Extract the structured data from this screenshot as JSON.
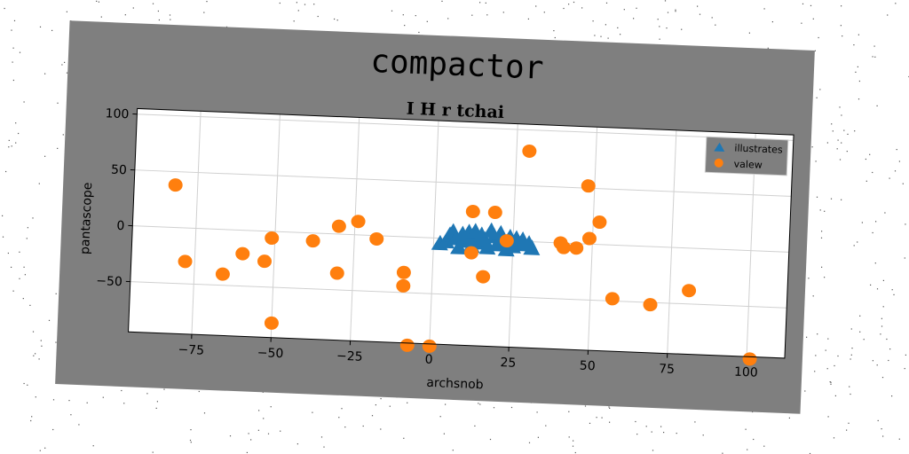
{
  "chart_data": {
    "type": "scatter",
    "title": "compactor",
    "subtitle": "I H r tchai",
    "xlabel": "archsnob",
    "ylabel": "pantascope",
    "xlim": [
      -95,
      112
    ],
    "ylim": [
      -95,
      105
    ],
    "xticks": [
      -75,
      -50,
      -25,
      0,
      25,
      50,
      75,
      100
    ],
    "yticks": [
      -50,
      0,
      50,
      100
    ],
    "xtick_labels": [
      "−75",
      "−50",
      "−25",
      "0",
      "25",
      "50",
      "75",
      "100"
    ],
    "ytick_labels": [
      "−50",
      "0",
      "50",
      "100"
    ],
    "grid": true,
    "legend_position": "top-right",
    "series": [
      {
        "name": "illustrates",
        "marker": "triangle",
        "color": "#1f77b4",
        "points": [
          [
            2,
            -5
          ],
          [
            4,
            -3
          ],
          [
            5,
            3
          ],
          [
            6,
            6
          ],
          [
            7,
            0
          ],
          [
            8,
            -8
          ],
          [
            9,
            4
          ],
          [
            10,
            -2
          ],
          [
            11,
            6
          ],
          [
            12,
            2
          ],
          [
            12,
            -6
          ],
          [
            13,
            7
          ],
          [
            14,
            -3
          ],
          [
            15,
            4
          ],
          [
            16,
            0
          ],
          [
            17,
            -7
          ],
          [
            18,
            8
          ],
          [
            19,
            3
          ],
          [
            20,
            -4
          ],
          [
            21,
            6
          ],
          [
            22,
            0
          ],
          [
            23,
            -8
          ],
          [
            24,
            3
          ],
          [
            25,
            -5
          ],
          [
            26,
            2
          ],
          [
            27,
            -3
          ],
          [
            28,
            1
          ],
          [
            30,
            -2
          ],
          [
            31,
            -6
          ]
        ]
      },
      {
        "name": "valew",
        "marker": "circle",
        "color": "#ff7f0e",
        "points": [
          [
            -82,
            38
          ],
          [
            -78,
            -30
          ],
          [
            -66,
            -40
          ],
          [
            -60,
            -21
          ],
          [
            -53,
            -27
          ],
          [
            -51,
            -6
          ],
          [
            -50,
            -82
          ],
          [
            -38,
            -7
          ],
          [
            -30,
            7
          ],
          [
            -30,
            -35
          ],
          [
            -24,
            12
          ],
          [
            -18,
            -3
          ],
          [
            -9,
            -32
          ],
          [
            -9,
            -44
          ],
          [
            -7,
            -97
          ],
          [
            0,
            -97
          ],
          [
            12,
            25
          ],
          [
            12,
            -12
          ],
          [
            16,
            -33
          ],
          [
            19,
            25
          ],
          [
            23,
            0
          ],
          [
            29,
            81
          ],
          [
            40,
            0
          ],
          [
            41,
            -4
          ],
          [
            45,
            -4
          ],
          [
            48,
            52
          ],
          [
            49,
            5
          ],
          [
            52,
            20
          ],
          [
            57,
            -48
          ],
          [
            69,
            -52
          ],
          [
            81,
            -38
          ],
          [
            101,
            -97
          ]
        ]
      }
    ]
  },
  "colors": {
    "figure_bg": "#7f7f7f",
    "axes_bg": "#ffffff",
    "grid": "#d0d0d0",
    "legend_bg": "#7f7f7f"
  }
}
